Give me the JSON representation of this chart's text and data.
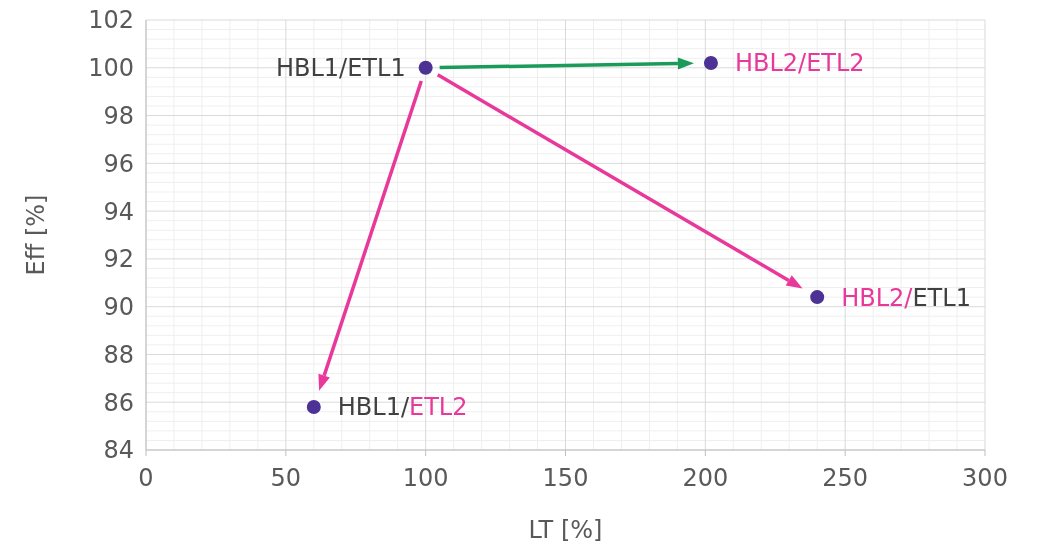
{
  "chart_data": {
    "type": "scatter",
    "xlabel": "LT [%]",
    "ylabel": "Eff [%]",
    "x": [
      100,
      202,
      240,
      60
    ],
    "series": [
      {
        "color": "#4b3294",
        "values": [
          100,
          100.2,
          90.4,
          85.8
        ]
      }
    ],
    "xlim": [
      0,
      300
    ],
    "xticks": [
      0,
      50,
      100,
      150,
      200,
      250,
      300
    ],
    "ylim": [
      84,
      102
    ],
    "yticks": [
      84,
      86,
      88,
      90,
      92,
      94,
      96,
      98,
      100,
      102
    ],
    "grid": true,
    "marker": "circle",
    "annotations": [
      {
        "text": "HBL1/ETL1",
        "x": 100,
        "y": 100
      },
      {
        "text": "HBL2/ETL2",
        "x": 202,
        "y": 100.2
      },
      {
        "text": "HBL2/ETL1",
        "x": 240,
        "y": 90.4
      },
      {
        "text": "HBL1/ETL2",
        "x": 60,
        "y": 85.8
      }
    ]
  }
}
